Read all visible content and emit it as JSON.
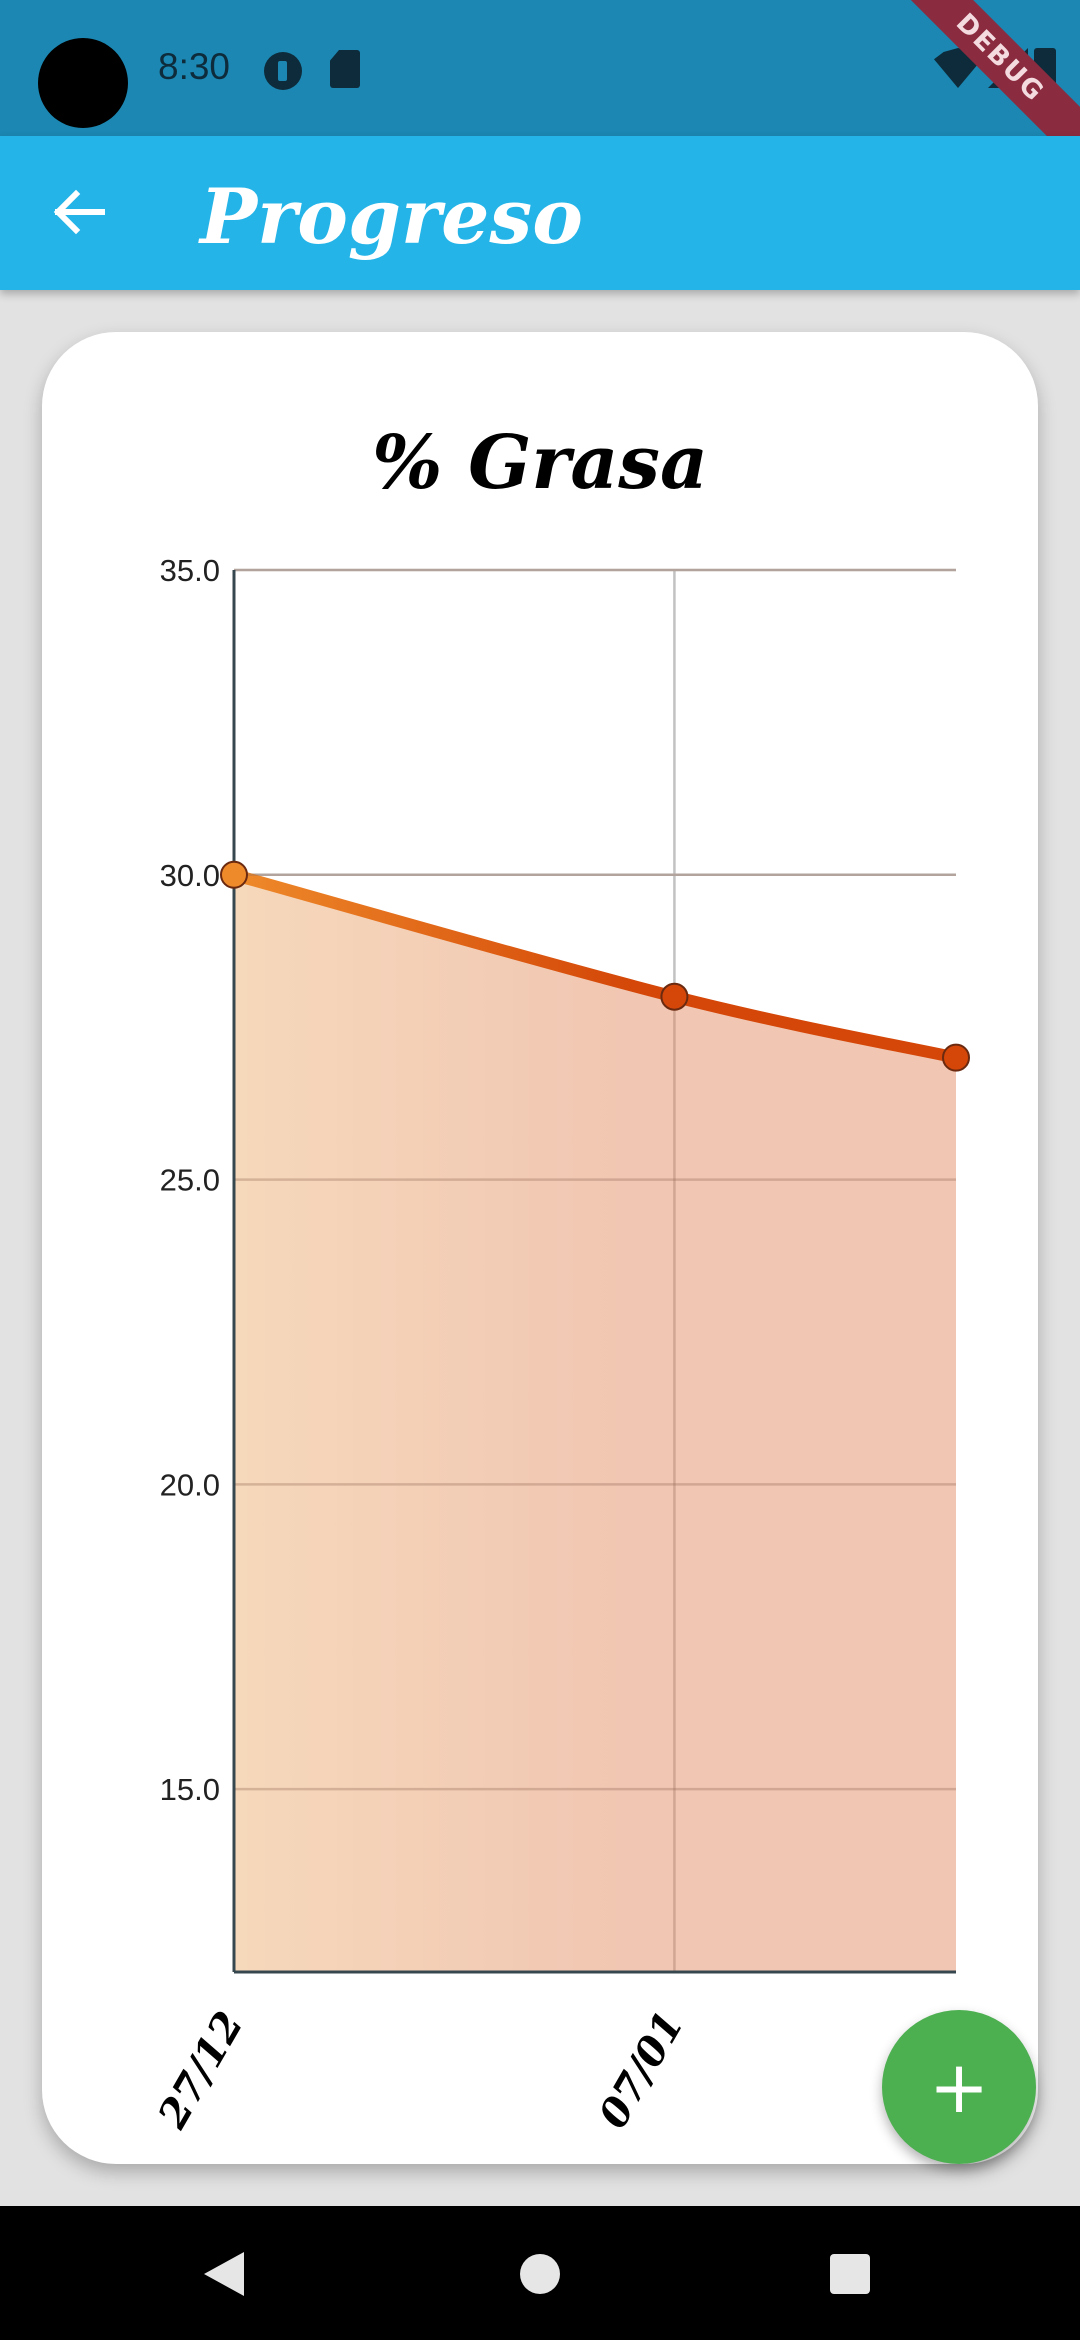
{
  "status_bar": {
    "time": "8:30",
    "icons": [
      "camera-hole",
      "app-notification-icon",
      "sd-card-icon",
      "wifi-icon",
      "signal-icon",
      "battery-icon"
    ],
    "debug_label": "DEBUG"
  },
  "app_bar": {
    "title": "Progreso",
    "back_icon": "arrow-left-icon",
    "color": "#24b4e8"
  },
  "chart_data": {
    "type": "area",
    "title": "% Grasa",
    "x": [
      "27/12",
      "07/01",
      ""
    ],
    "values": [
      30.0,
      28.0,
      27.0
    ],
    "yticks": [
      "35.0",
      "30.0",
      "25.0",
      "20.0",
      "15.0"
    ],
    "ylim": [
      12,
      35
    ],
    "grid": true,
    "line_color_start": "#ee8a2a",
    "line_color_end": "#d44708",
    "fill_color_start": "#f6d8bb",
    "fill_color_end": "#f1c6b2"
  },
  "fab": {
    "icon": "plus-icon",
    "color": "#4caf50"
  },
  "nav_bar": {
    "icons": [
      "nav-back-icon",
      "nav-home-icon",
      "nav-recent-icon"
    ]
  }
}
